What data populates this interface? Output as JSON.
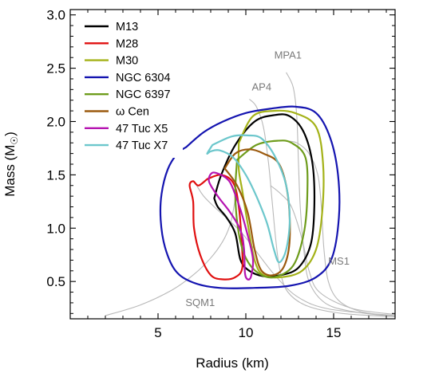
{
  "chart_data": {
    "type": "line",
    "xlabel": "Radius (km)",
    "ylabel": "Mass (M☉)",
    "ylabel_main": "Mass (M",
    "ylabel_sun": "☉",
    "ylabel_close": ")",
    "xlim": [
      0,
      18.5
    ],
    "ylim": [
      0.15,
      3.05
    ],
    "xticks": [
      5,
      10,
      15
    ],
    "xtick_labels": [
      "5",
      "10",
      "15"
    ],
    "yticks": [
      0.5,
      1.0,
      1.5,
      2.0,
      2.5,
      3.0
    ],
    "ytick_labels": [
      "0.5",
      "1.0",
      "1.5",
      "2.0",
      "2.5",
      "3.0"
    ],
    "grid": false,
    "legend_position": "top-left",
    "eos_curves": [
      {
        "name": "SQM1",
        "label_at": [
          7.4,
          0.27
        ],
        "points": [
          [
            2.0,
            0.18
          ],
          [
            4.0,
            0.28
          ],
          [
            5.8,
            0.42
          ],
          [
            7.0,
            0.56
          ],
          [
            8.0,
            0.72
          ],
          [
            8.7,
            0.88
          ],
          [
            9.1,
            1.03
          ],
          [
            9.3,
            1.18
          ],
          [
            9.4,
            1.3
          ],
          [
            9.37,
            1.4
          ],
          [
            9.2,
            1.47
          ]
        ]
      },
      {
        "name": "AP4",
        "label_at": [
          10.9,
          2.29
        ],
        "points": [
          [
            18.5,
            0.17
          ],
          [
            15.5,
            0.2
          ],
          [
            13.5,
            0.27
          ],
          [
            12.4,
            0.4
          ],
          [
            11.95,
            0.6
          ],
          [
            11.7,
            0.9
          ],
          [
            11.5,
            1.25
          ],
          [
            11.3,
            1.6
          ],
          [
            11.0,
            1.95
          ],
          [
            10.6,
            2.14
          ],
          [
            10.2,
            2.21
          ]
        ]
      },
      {
        "name": "MPA1",
        "label_at": [
          12.4,
          2.59
        ],
        "points": [
          [
            18.5,
            0.17
          ],
          [
            16.0,
            0.22
          ],
          [
            14.5,
            0.3
          ],
          [
            13.6,
            0.5
          ],
          [
            13.3,
            0.8
          ],
          [
            13.1,
            1.2
          ],
          [
            13.0,
            1.6
          ],
          [
            12.9,
            2.05
          ],
          [
            12.7,
            2.32
          ],
          [
            12.3,
            2.46
          ]
        ]
      },
      {
        "name": "MS1",
        "label_at": [
          15.3,
          0.66
        ],
        "points": [
          [
            18.5,
            0.17
          ],
          [
            16.5,
            0.22
          ],
          [
            15.3,
            0.32
          ],
          [
            14.7,
            0.5
          ],
          [
            14.45,
            0.8
          ],
          [
            14.3,
            1.2
          ],
          [
            14.1,
            1.5
          ],
          [
            13.6,
            1.7
          ],
          [
            12.9,
            1.8
          ],
          [
            12.2,
            1.82
          ]
        ]
      },
      {
        "name": "",
        "label_at": null,
        "points": [
          [
            18.5,
            0.18
          ],
          [
            14.8,
            0.24
          ],
          [
            13.0,
            0.35
          ],
          [
            11.7,
            0.55
          ],
          [
            10.6,
            0.78
          ],
          [
            9.8,
            0.95
          ],
          [
            9.0,
            1.08
          ],
          [
            8.2,
            1.2
          ],
          [
            7.6,
            1.3
          ],
          [
            7.2,
            1.4
          ]
        ]
      },
      {
        "name": "",
        "label_at": null,
        "points": [
          [
            18.5,
            0.19
          ],
          [
            16.0,
            0.25
          ],
          [
            14.2,
            0.4
          ],
          [
            13.6,
            0.6
          ],
          [
            13.2,
            0.9
          ],
          [
            12.6,
            1.2
          ],
          [
            12.0,
            1.32
          ],
          [
            11.4,
            1.4
          ]
        ]
      }
    ],
    "series": [
      {
        "name": "M13",
        "color": "#000000",
        "points": [
          [
            8.2,
            1.28
          ],
          [
            8.6,
            1.5
          ],
          [
            9.4,
            1.78
          ],
          [
            10.5,
            2.0
          ],
          [
            11.6,
            2.06
          ],
          [
            12.5,
            2.05
          ],
          [
            13.3,
            1.9
          ],
          [
            13.8,
            1.6
          ],
          [
            13.9,
            1.2
          ],
          [
            13.7,
            0.85
          ],
          [
            13.0,
            0.63
          ],
          [
            12.0,
            0.56
          ],
          [
            11.0,
            0.55
          ],
          [
            10.2,
            0.6
          ],
          [
            9.7,
            0.7
          ],
          [
            9.4,
            0.95
          ],
          [
            8.9,
            1.1
          ],
          [
            8.4,
            1.2
          ],
          [
            8.2,
            1.28
          ]
        ]
      },
      {
        "name": "M28",
        "color": "#e01010",
        "points": [
          [
            7.8,
            1.46
          ],
          [
            8.6,
            1.5
          ],
          [
            9.3,
            1.42
          ],
          [
            9.6,
            1.2
          ],
          [
            9.75,
            0.9
          ],
          [
            9.8,
            0.63
          ],
          [
            9.4,
            0.54
          ],
          [
            8.7,
            0.52
          ],
          [
            8.0,
            0.56
          ],
          [
            7.4,
            0.75
          ],
          [
            7.05,
            1.0
          ],
          [
            7.0,
            1.25
          ],
          [
            6.8,
            1.4
          ],
          [
            7.0,
            1.44
          ],
          [
            7.3,
            1.4
          ],
          [
            7.8,
            1.46
          ]
        ]
      },
      {
        "name": "M30",
        "color": "#a4b218",
        "points": [
          [
            9.6,
            1.8
          ],
          [
            10.4,
            2.05
          ],
          [
            11.6,
            2.1
          ],
          [
            12.8,
            2.08
          ],
          [
            14.0,
            1.95
          ],
          [
            14.4,
            1.6
          ],
          [
            14.35,
            1.15
          ],
          [
            14.0,
            0.8
          ],
          [
            13.2,
            0.6
          ],
          [
            12.0,
            0.54
          ],
          [
            11.0,
            0.56
          ],
          [
            10.5,
            0.7
          ],
          [
            10.1,
            1.05
          ],
          [
            9.8,
            1.35
          ],
          [
            9.6,
            1.55
          ],
          [
            9.6,
            1.8
          ]
        ]
      },
      {
        "name": "NGC 6304",
        "color": "#1414b0",
        "points": [
          [
            6.6,
            1.76
          ],
          [
            7.6,
            1.9
          ],
          [
            8.7,
            2.0
          ],
          [
            10.0,
            2.08
          ],
          [
            11.4,
            2.12
          ],
          [
            12.8,
            2.14
          ],
          [
            14.0,
            2.08
          ],
          [
            14.8,
            1.85
          ],
          [
            15.25,
            1.5
          ],
          [
            15.3,
            1.1
          ],
          [
            14.9,
            0.72
          ],
          [
            14.0,
            0.54
          ],
          [
            12.5,
            0.46
          ],
          [
            10.5,
            0.44
          ],
          [
            8.5,
            0.44
          ],
          [
            7.0,
            0.49
          ],
          [
            6.0,
            0.6
          ],
          [
            5.4,
            0.82
          ],
          [
            5.15,
            1.08
          ],
          [
            5.2,
            1.32
          ],
          [
            5.55,
            1.55
          ],
          [
            6.1,
            1.7
          ],
          [
            6.6,
            1.76
          ]
        ]
      },
      {
        "name": "NGC 6397",
        "color": "#6e9c1c",
        "points": [
          [
            9.5,
            1.64
          ],
          [
            10.6,
            1.78
          ],
          [
            11.8,
            1.82
          ],
          [
            12.6,
            1.8
          ],
          [
            13.4,
            1.66
          ],
          [
            13.5,
            1.3
          ],
          [
            13.3,
            0.95
          ],
          [
            12.7,
            0.65
          ],
          [
            11.6,
            0.54
          ],
          [
            10.7,
            0.58
          ],
          [
            10.0,
            0.72
          ],
          [
            9.6,
            0.95
          ],
          [
            9.4,
            1.3
          ],
          [
            9.5,
            1.64
          ]
        ]
      },
      {
        "name": "ω Cen",
        "color": "#9b5a0e",
        "points": [
          [
            8.8,
            1.56
          ],
          [
            9.4,
            1.7
          ],
          [
            10.2,
            1.74
          ],
          [
            11.0,
            1.7
          ],
          [
            11.9,
            1.6
          ],
          [
            12.4,
            1.3
          ],
          [
            12.5,
            0.9
          ],
          [
            12.2,
            0.65
          ],
          [
            11.6,
            0.56
          ],
          [
            10.9,
            0.6
          ],
          [
            10.5,
            0.8
          ],
          [
            10.1,
            1.15
          ],
          [
            9.5,
            1.4
          ],
          [
            8.8,
            1.56
          ]
        ]
      },
      {
        "name": "47 Tuc X5",
        "color": "#b513b0",
        "points": [
          [
            8.6,
            1.5
          ],
          [
            9.1,
            1.43
          ],
          [
            9.6,
            1.22
          ],
          [
            10.0,
            1.0
          ],
          [
            10.4,
            0.72
          ],
          [
            10.3,
            0.55
          ],
          [
            10.1,
            0.52
          ],
          [
            9.95,
            0.58
          ],
          [
            9.9,
            0.8
          ],
          [
            9.7,
            0.98
          ],
          [
            9.1,
            1.15
          ],
          [
            8.4,
            1.3
          ],
          [
            7.9,
            1.44
          ],
          [
            8.1,
            1.52
          ],
          [
            8.6,
            1.5
          ]
        ]
      },
      {
        "name": "47 Tuc X7",
        "color": "#6cc7cc",
        "points": [
          [
            8.1,
            1.78
          ],
          [
            9.2,
            1.86
          ],
          [
            10.1,
            1.87
          ],
          [
            10.9,
            1.84
          ],
          [
            11.7,
            1.66
          ],
          [
            12.3,
            1.4
          ],
          [
            12.5,
            1.08
          ],
          [
            12.3,
            0.8
          ],
          [
            11.9,
            0.68
          ],
          [
            11.6,
            0.8
          ],
          [
            11.2,
            1.05
          ],
          [
            10.6,
            1.3
          ],
          [
            10.0,
            1.5
          ],
          [
            9.3,
            1.66
          ],
          [
            8.5,
            1.73
          ],
          [
            8.0,
            1.72
          ],
          [
            7.8,
            1.7
          ],
          [
            8.1,
            1.78
          ]
        ]
      }
    ]
  }
}
